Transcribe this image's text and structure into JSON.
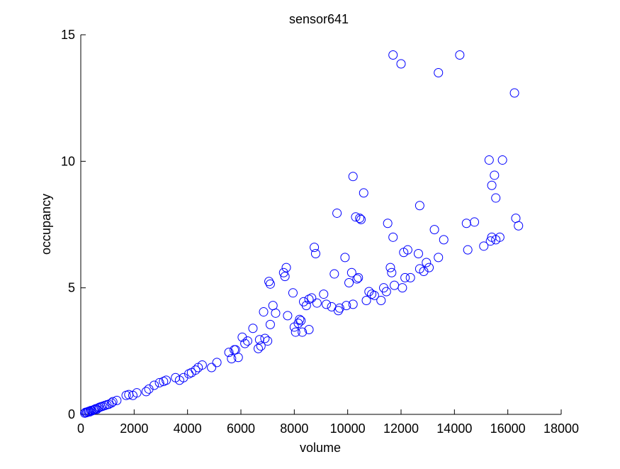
{
  "chart_data": {
    "type": "scatter",
    "title": "sensor641",
    "xlabel": "volume",
    "ylabel": "occupancy",
    "xlim": [
      0,
      18000
    ],
    "ylim": [
      0,
      15
    ],
    "xticks": [
      0,
      2000,
      4000,
      6000,
      8000,
      10000,
      12000,
      14000,
      16000,
      18000
    ],
    "yticks": [
      0,
      5,
      10,
      15
    ],
    "xtick_labels": [
      "0",
      "2000",
      "4000",
      "6000",
      "8000",
      "10000",
      "12000",
      "14000",
      "16000",
      "18000"
    ],
    "ytick_labels": [
      "0",
      "5",
      "10",
      "15"
    ],
    "grid": false,
    "marker": "open-circle",
    "marker_color": "#0000ff",
    "axis_color": "#000000",
    "series": [
      {
        "points": [
          [
            150,
            0.05
          ],
          [
            180,
            0.08
          ],
          [
            220,
            0.07
          ],
          [
            260,
            0.1
          ],
          [
            300,
            0.12
          ],
          [
            340,
            0.1
          ],
          [
            380,
            0.15
          ],
          [
            420,
            0.14
          ],
          [
            480,
            0.18
          ],
          [
            520,
            0.2
          ],
          [
            560,
            0.22
          ],
          [
            600,
            0.2
          ],
          [
            650,
            0.25
          ],
          [
            700,
            0.28
          ],
          [
            760,
            0.3
          ],
          [
            820,
            0.32
          ],
          [
            900,
            0.35
          ],
          [
            980,
            0.38
          ],
          [
            1050,
            0.4
          ],
          [
            1150,
            0.45
          ],
          [
            1200,
            0.5
          ],
          [
            1350,
            0.55
          ],
          [
            1700,
            0.75
          ],
          [
            1800,
            0.78
          ],
          [
            1950,
            0.75
          ],
          [
            2100,
            0.85
          ],
          [
            2450,
            0.9
          ],
          [
            2550,
            1.0
          ],
          [
            2750,
            1.15
          ],
          [
            2950,
            1.25
          ],
          [
            3100,
            1.3
          ],
          [
            3200,
            1.35
          ],
          [
            3550,
            1.45
          ],
          [
            3700,
            1.35
          ],
          [
            3850,
            1.45
          ],
          [
            4050,
            1.6
          ],
          [
            4150,
            1.65
          ],
          [
            4300,
            1.75
          ],
          [
            4400,
            1.85
          ],
          [
            4550,
            1.95
          ],
          [
            4900,
            1.85
          ],
          [
            5100,
            2.05
          ],
          [
            5550,
            2.45
          ],
          [
            5650,
            2.2
          ],
          [
            5750,
            2.55
          ],
          [
            5800,
            2.55
          ],
          [
            5900,
            2.25
          ],
          [
            6050,
            3.05
          ],
          [
            6150,
            2.8
          ],
          [
            6250,
            2.9
          ],
          [
            6450,
            3.4
          ],
          [
            6650,
            2.6
          ],
          [
            6700,
            2.95
          ],
          [
            6750,
            2.7
          ],
          [
            6850,
            4.05
          ],
          [
            6900,
            3.0
          ],
          [
            7000,
            2.9
          ],
          [
            7050,
            5.25
          ],
          [
            7100,
            5.15
          ],
          [
            7100,
            3.55
          ],
          [
            7200,
            4.3
          ],
          [
            7300,
            4.0
          ],
          [
            7600,
            5.6
          ],
          [
            7650,
            5.45
          ],
          [
            7700,
            5.8
          ],
          [
            7750,
            3.9
          ],
          [
            7950,
            4.8
          ],
          [
            8000,
            3.45
          ],
          [
            8050,
            3.25
          ],
          [
            8150,
            3.6
          ],
          [
            8200,
            3.75
          ],
          [
            8250,
            3.7
          ],
          [
            8300,
            3.25
          ],
          [
            8350,
            4.45
          ],
          [
            8450,
            4.3
          ],
          [
            8550,
            4.55
          ],
          [
            8550,
            3.35
          ],
          [
            8650,
            4.6
          ],
          [
            8750,
            6.6
          ],
          [
            8800,
            6.35
          ],
          [
            8850,
            4.4
          ],
          [
            9100,
            4.75
          ],
          [
            9200,
            4.35
          ],
          [
            9400,
            4.25
          ],
          [
            9500,
            5.55
          ],
          [
            9600,
            7.95
          ],
          [
            9650,
            4.1
          ],
          [
            9700,
            4.2
          ],
          [
            9900,
            6.2
          ],
          [
            9950,
            4.3
          ],
          [
            10050,
            5.2
          ],
          [
            10150,
            5.6
          ],
          [
            10200,
            9.4
          ],
          [
            10200,
            4.35
          ],
          [
            10300,
            7.8
          ],
          [
            10350,
            5.35
          ],
          [
            10400,
            5.4
          ],
          [
            10450,
            7.75
          ],
          [
            10500,
            7.7
          ],
          [
            10600,
            8.75
          ],
          [
            10700,
            4.5
          ],
          [
            10800,
            4.85
          ],
          [
            10900,
            4.75
          ],
          [
            11000,
            4.7
          ],
          [
            11250,
            4.5
          ],
          [
            11350,
            5.0
          ],
          [
            11450,
            4.85
          ],
          [
            11500,
            7.55
          ],
          [
            11600,
            5.8
          ],
          [
            11650,
            5.6
          ],
          [
            11700,
            7.0
          ],
          [
            11750,
            5.1
          ],
          [
            11700,
            14.2
          ],
          [
            12000,
            13.85
          ],
          [
            12050,
            5.0
          ],
          [
            12100,
            6.4
          ],
          [
            12150,
            5.4
          ],
          [
            12250,
            6.5
          ],
          [
            12350,
            5.4
          ],
          [
            12650,
            6.35
          ],
          [
            12700,
            8.25
          ],
          [
            12700,
            5.75
          ],
          [
            12850,
            5.65
          ],
          [
            12950,
            6.0
          ],
          [
            13050,
            5.8
          ],
          [
            13250,
            7.3
          ],
          [
            13400,
            6.2
          ],
          [
            13400,
            13.5
          ],
          [
            13600,
            6.9
          ],
          [
            14200,
            14.2
          ],
          [
            14450,
            7.55
          ],
          [
            14500,
            6.5
          ],
          [
            14750,
            7.6
          ],
          [
            15100,
            6.65
          ],
          [
            15300,
            10.05
          ],
          [
            15350,
            6.85
          ],
          [
            15400,
            7.0
          ],
          [
            15400,
            9.05
          ],
          [
            15500,
            9.45
          ],
          [
            15550,
            8.55
          ],
          [
            15550,
            6.9
          ],
          [
            15700,
            7.0
          ],
          [
            15800,
            10.05
          ],
          [
            16250,
            12.7
          ],
          [
            16300,
            7.75
          ],
          [
            16400,
            7.45
          ]
        ]
      }
    ]
  }
}
